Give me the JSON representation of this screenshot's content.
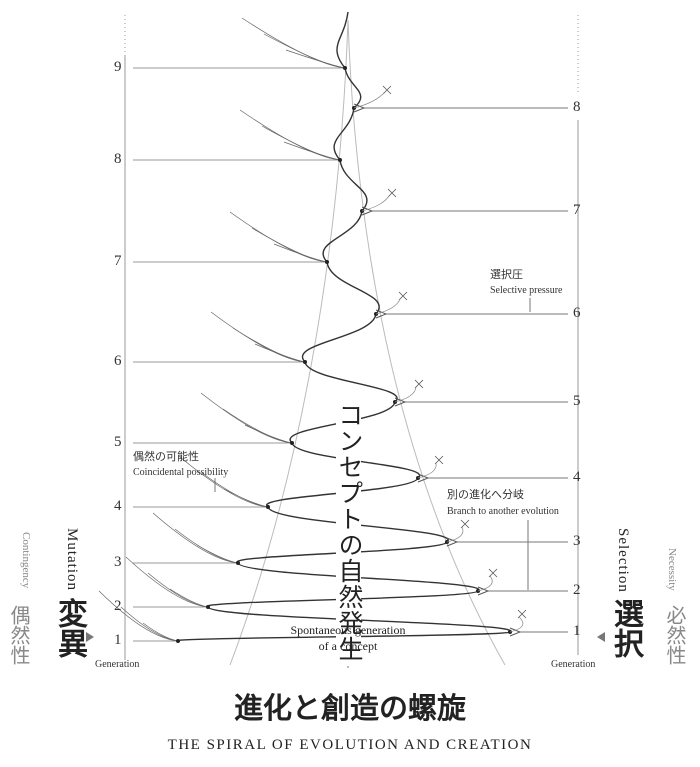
{
  "left_axis": {
    "labels": [
      "1",
      "2",
      "3",
      "4",
      "5",
      "6",
      "7",
      "8",
      "9"
    ],
    "end_label": "Generation"
  },
  "right_axis": {
    "labels": [
      "1",
      "2",
      "3",
      "4",
      "5",
      "6",
      "7",
      "8"
    ],
    "end_label": "Generation"
  },
  "center_label": "コンセプトの自然発生",
  "center_caption": [
    "Spontaneous generation",
    "of a concept"
  ],
  "annotations": {
    "selective_pressure": {
      "ja": "選択圧",
      "en": "Selective pressure"
    },
    "coincidental_possibility": {
      "ja": "偶然の可能性",
      "en": "Coincidental possibility"
    },
    "branch": {
      "ja": "別の進化へ分岐",
      "en": "Branch to another evolution"
    }
  },
  "left_side": {
    "en_small": "Contingency",
    "en": "Mutation",
    "ja_small": "偶然性",
    "ja": "変異"
  },
  "right_side": {
    "en_small": "Necessity",
    "en": "Selection",
    "ja_small": "必然性",
    "ja": "選択"
  },
  "title": "進化と創造の螺旋",
  "subtitle": "THE SPIRAL OF EVOLUTION AND CREATION"
}
